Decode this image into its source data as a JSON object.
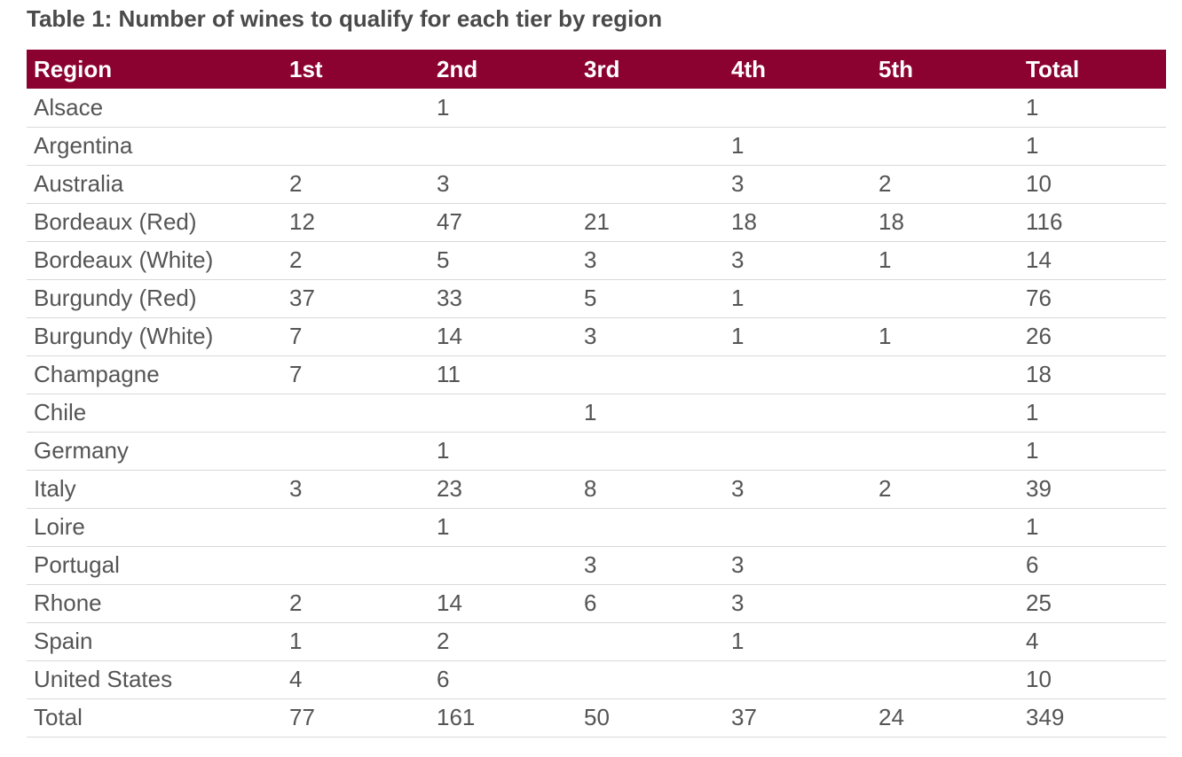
{
  "caption": "Table 1: Number of wines to qualify for each tier by region",
  "header": {
    "region": "Region",
    "t1": "1st",
    "t2": "2nd",
    "t3": "3rd",
    "t4": "4th",
    "t5": "5th",
    "total": "Total"
  },
  "rows": [
    {
      "region": "Alsace",
      "t1": "",
      "t2": "1",
      "t3": "",
      "t4": "",
      "t5": "",
      "total": "1"
    },
    {
      "region": "Argentina",
      "t1": "",
      "t2": "",
      "t3": "",
      "t4": "1",
      "t5": "",
      "total": "1"
    },
    {
      "region": "Australia",
      "t1": "2",
      "t2": "3",
      "t3": "",
      "t4": "3",
      "t5": "2",
      "total": "10"
    },
    {
      "region": "Bordeaux (Red)",
      "t1": "12",
      "t2": "47",
      "t3": "21",
      "t4": "18",
      "t5": "18",
      "total": "116"
    },
    {
      "region": "Bordeaux (White)",
      "t1": "2",
      "t2": "5",
      "t3": "3",
      "t4": "3",
      "t5": "1",
      "total": "14"
    },
    {
      "region": "Burgundy (Red)",
      "t1": "37",
      "t2": "33",
      "t3": "5",
      "t4": "1",
      "t5": "",
      "total": "76"
    },
    {
      "region": "Burgundy (White)",
      "t1": "7",
      "t2": "14",
      "t3": "3",
      "t4": "1",
      "t5": "1",
      "total": "26"
    },
    {
      "region": "Champagne",
      "t1": "7",
      "t2": "11",
      "t3": "",
      "t4": "",
      "t5": "",
      "total": "18"
    },
    {
      "region": "Chile",
      "t1": "",
      "t2": "",
      "t3": "1",
      "t4": "",
      "t5": "",
      "total": "1"
    },
    {
      "region": "Germany",
      "t1": "",
      "t2": "1",
      "t3": "",
      "t4": "",
      "t5": "",
      "total": "1"
    },
    {
      "region": "Italy",
      "t1": "3",
      "t2": "23",
      "t3": "8",
      "t4": "3",
      "t5": "2",
      "total": "39"
    },
    {
      "region": "Loire",
      "t1": "",
      "t2": "1",
      "t3": "",
      "t4": "",
      "t5": "",
      "total": "1"
    },
    {
      "region": "Portugal",
      "t1": "",
      "t2": "",
      "t3": "3",
      "t4": "3",
      "t5": "",
      "total": "6"
    },
    {
      "region": "Rhone",
      "t1": "2",
      "t2": "14",
      "t3": "6",
      "t4": "3",
      "t5": "",
      "total": "25"
    },
    {
      "region": "Spain",
      "t1": "1",
      "t2": "2",
      "t3": "",
      "t4": "1",
      "t5": "",
      "total": "4"
    },
    {
      "region": "United States",
      "t1": "4",
      "t2": "6",
      "t3": "",
      "t4": "",
      "t5": "",
      "total": "10"
    },
    {
      "region": "Total",
      "t1": "77",
      "t2": "161",
      "t3": "50",
      "t4": "37",
      "t5": "24",
      "total": "349"
    }
  ],
  "colors": {
    "header_bg": "#8b0230",
    "header_text": "#ffffff",
    "body_text": "#555555",
    "row_divider": "#d9d9d9"
  }
}
